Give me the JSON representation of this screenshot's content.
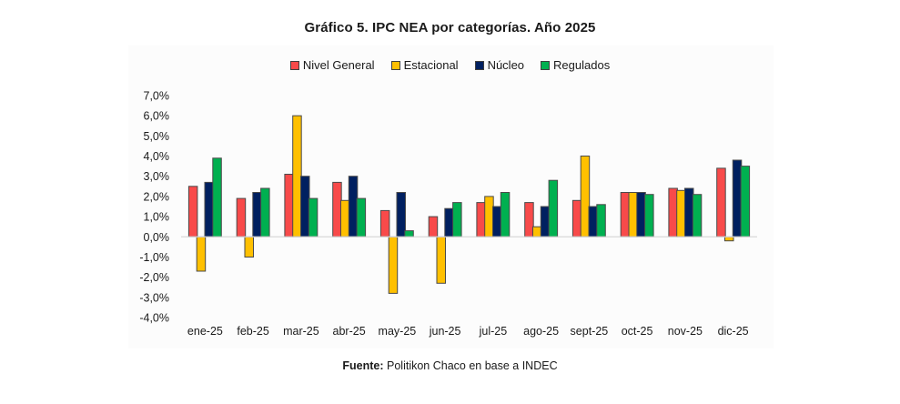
{
  "chart_data": {
    "type": "bar",
    "title": "Gráfico 5. IPC NEA por categorías. Año 2025",
    "xlabel": "",
    "ylabel": "",
    "ylim": [
      -4.0,
      7.0
    ],
    "yticks": [
      7.0,
      6.0,
      5.0,
      4.0,
      3.0,
      2.0,
      1.0,
      0.0,
      -1.0,
      -2.0,
      -3.0,
      -4.0
    ],
    "ytick_labels": [
      "7,0%",
      "6,0%",
      "5,0%",
      "4,0%",
      "3,0%",
      "2,0%",
      "1,0%",
      "0,0%",
      "-1,0%",
      "-2,0%",
      "-3,0%",
      "-4,0%"
    ],
    "grid": false,
    "legend_position": "top-center",
    "categories": [
      "ene-25",
      "feb-25",
      "mar-25",
      "abr-25",
      "may-25",
      "jun-25",
      "jul-25",
      "ago-25",
      "sept-25",
      "oct-25",
      "nov-25",
      "dic-25"
    ],
    "series": [
      {
        "name": "Nivel General",
        "color": "#F84A4A",
        "values": [
          2.5,
          1.9,
          3.1,
          2.7,
          1.3,
          1.0,
          1.7,
          1.7,
          1.8,
          2.2,
          2.4,
          3.4
        ]
      },
      {
        "name": "Estacional",
        "color": "#FFC000",
        "values": [
          -1.7,
          -1.0,
          6.0,
          1.8,
          -2.8,
          -2.3,
          2.0,
          0.5,
          4.0,
          2.2,
          2.3,
          -0.2
        ]
      },
      {
        "name": "Núcleo",
        "color": "#002060",
        "values": [
          2.7,
          2.2,
          3.0,
          3.0,
          2.2,
          1.4,
          1.5,
          1.5,
          1.5,
          2.2,
          2.4,
          3.8
        ]
      },
      {
        "name": "Regulados",
        "color": "#00B050",
        "values": [
          3.9,
          2.4,
          1.9,
          1.9,
          0.3,
          1.7,
          2.2,
          2.8,
          1.6,
          2.1,
          2.1,
          3.5
        ]
      }
    ]
  },
  "footer": {
    "label": "Fuente:",
    "text": " Politikon Chaco en base a INDEC"
  }
}
